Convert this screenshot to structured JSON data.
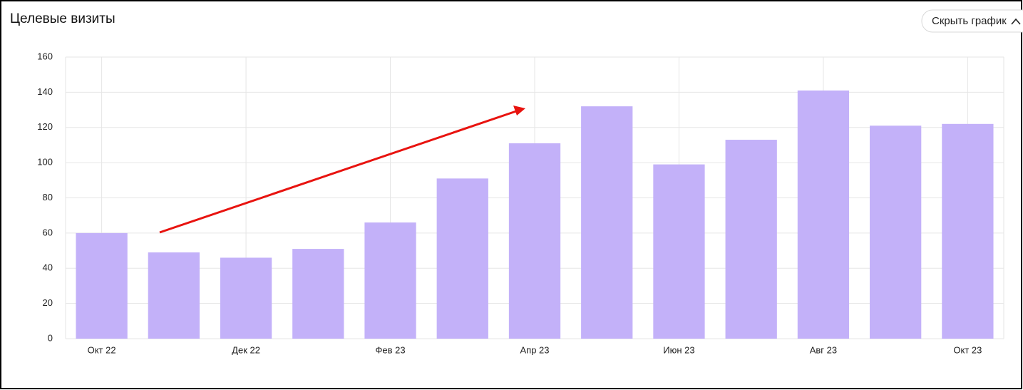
{
  "ui": {
    "hide_button": "Скрыть график"
  },
  "chart_data": {
    "type": "bar",
    "title": "Целевые визиты",
    "categories": [
      "Окт 22",
      null,
      "Дек 22",
      null,
      "Фев 23",
      null,
      "Апр 23",
      null,
      "Июн 23",
      null,
      "Авг 23",
      null,
      "Окт 23"
    ],
    "values": [
      60,
      49,
      46,
      51,
      66,
      91,
      111,
      132,
      99,
      113,
      141,
      121,
      122
    ],
    "color": "#c3b1f9",
    "ylim": [
      0,
      160
    ],
    "yticks": [
      0,
      20,
      40,
      60,
      80,
      100,
      120,
      140,
      160
    ],
    "grid": true
  }
}
